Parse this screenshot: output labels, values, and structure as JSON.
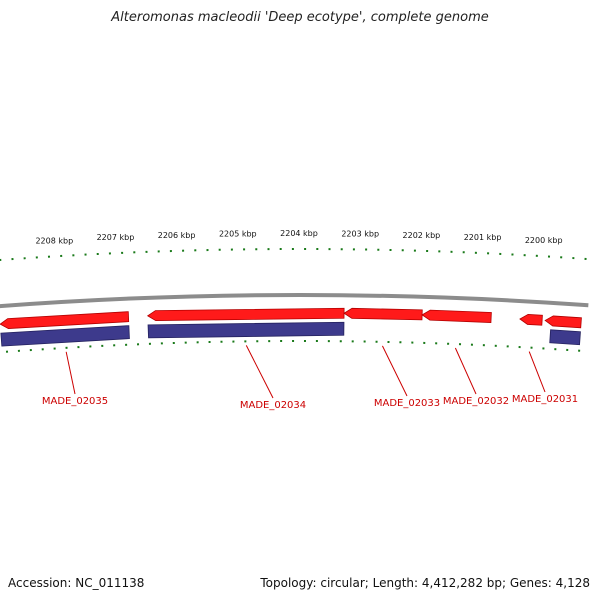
{
  "title": "Alteromonas macleodii 'Deep ecotype', complete genome",
  "footer": {
    "accession": "Accession: NC_011138",
    "summary": "Topology: circular; Length: 4,412,282 bp; Genes: 4,128"
  },
  "colors": {
    "gene_forward": "#ff1a1a",
    "gene_reverse": "#3d3a8c",
    "tick": "#1a7a1a",
    "backbone": "#8c8c8c",
    "label": "#cc0000"
  },
  "map": {
    "type": "circular-genome-zoom",
    "tick_labels": [
      "2208 kbp",
      "2207 kbp",
      "2206 kbp",
      "2205 kbp",
      "2204 kbp",
      "2203 kbp",
      "2202 kbp",
      "2201 kbp",
      "2200 kbp"
    ],
    "genes": [
      {
        "label": "MADE_02035",
        "start_kbp": 2208.98,
        "end_kbp": 2206.84
      },
      {
        "label": "MADE_02034",
        "start_kbp": 2206.52,
        "end_kbp": 2203.25
      },
      {
        "label": "MADE_02033",
        "start_kbp": 2203.25,
        "end_kbp": 2201.95
      },
      {
        "label": "MADE_02032",
        "start_kbp": 2201.95,
        "end_kbp": 2200.8
      },
      {
        "label": "MADE_02031",
        "start_kbp": 2200.32,
        "end_kbp": 2199.95
      },
      {
        "label": "",
        "start_kbp": 2199.9,
        "end_kbp": 2199.3
      }
    ]
  }
}
